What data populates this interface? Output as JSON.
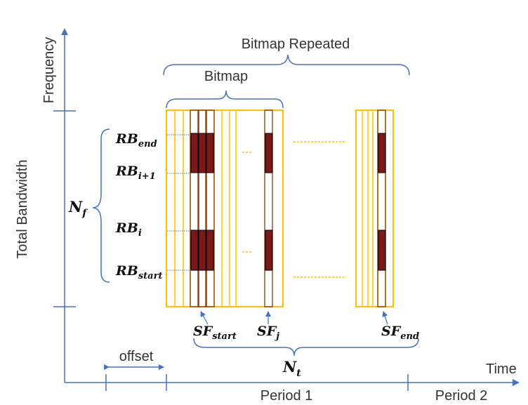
{
  "axes": {
    "y_label": "Frequency",
    "x_label": "Time",
    "bandwidth_label": "Total Bandwidth"
  },
  "braces": {
    "bitmap_repeated": "Bitmap Repeated",
    "bitmap": "Bitmap",
    "offset": "offset"
  },
  "math": {
    "nf": {
      "base": "N",
      "sub": "f"
    },
    "nt": {
      "base": "N",
      "sub": "t"
    },
    "rb_end": {
      "base": "RB",
      "sub": "end"
    },
    "rb_i1": {
      "base": "RB",
      "sub": "i+1"
    },
    "rb_i": {
      "base": "RB",
      "sub": "i"
    },
    "rb_start": {
      "base": "RB",
      "sub": "start"
    },
    "sf_start": {
      "base": "SF",
      "sub": "start"
    },
    "sf_j": {
      "base": "SF",
      "sub": "j"
    },
    "sf_end": {
      "base": "SF",
      "sub": "end"
    }
  },
  "periods": {
    "p1": "Period 1",
    "p2": "Period 2"
  },
  "colors": {
    "axis": "#4472c4",
    "brace": "#4472c4",
    "grid": "#ffc000",
    "slot_outline": "#843c0c",
    "allocated": "#7b1818",
    "dotted": "#4472c4"
  }
}
